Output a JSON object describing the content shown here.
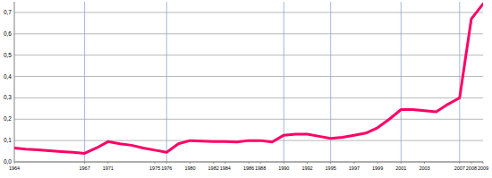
{
  "chart_data": {
    "type": "line",
    "categories": [
      "1964",
      null,
      null,
      null,
      null,
      null,
      "1967",
      null,
      "1971",
      null,
      null,
      null,
      "1975",
      "1976",
      null,
      "1980",
      null,
      "1982",
      "1984",
      null,
      "1986",
      "1988",
      null,
      "1990",
      null,
      "1992",
      null,
      "1995",
      null,
      "1997",
      null,
      "1999",
      null,
      "2001",
      null,
      "2003",
      null,
      null,
      "2007",
      "2008",
      "2009"
    ],
    "values": [
      0.065,
      0.06,
      0.057,
      0.052,
      0.048,
      0.045,
      0.04,
      0.065,
      0.095,
      0.085,
      0.078,
      0.065,
      0.055,
      0.045,
      0.085,
      0.1,
      0.097,
      0.095,
      0.095,
      0.093,
      0.1,
      0.1,
      0.093,
      0.125,
      0.13,
      0.13,
      0.12,
      0.11,
      0.115,
      0.125,
      0.135,
      0.16,
      0.2,
      0.245,
      0.245,
      0.24,
      0.235,
      0.27,
      0.3,
      0.67,
      0.74
    ],
    "color": "#ff0066",
    "ylim": [
      0,
      0.75
    ],
    "yticks": [
      {
        "value": 0,
        "label": "0,0"
      },
      {
        "value": 0.1,
        "label": "0,1"
      },
      {
        "value": 0.2,
        "label": "0,2"
      },
      {
        "value": 0.3,
        "label": "0,3"
      },
      {
        "value": 0.4,
        "label": "0,4"
      },
      {
        "value": 0.5,
        "label": "0,5"
      },
      {
        "value": 0.6,
        "label": "0,6"
      },
      {
        "value": 0.7,
        "label": "0,7"
      }
    ],
    "grid": true
  }
}
